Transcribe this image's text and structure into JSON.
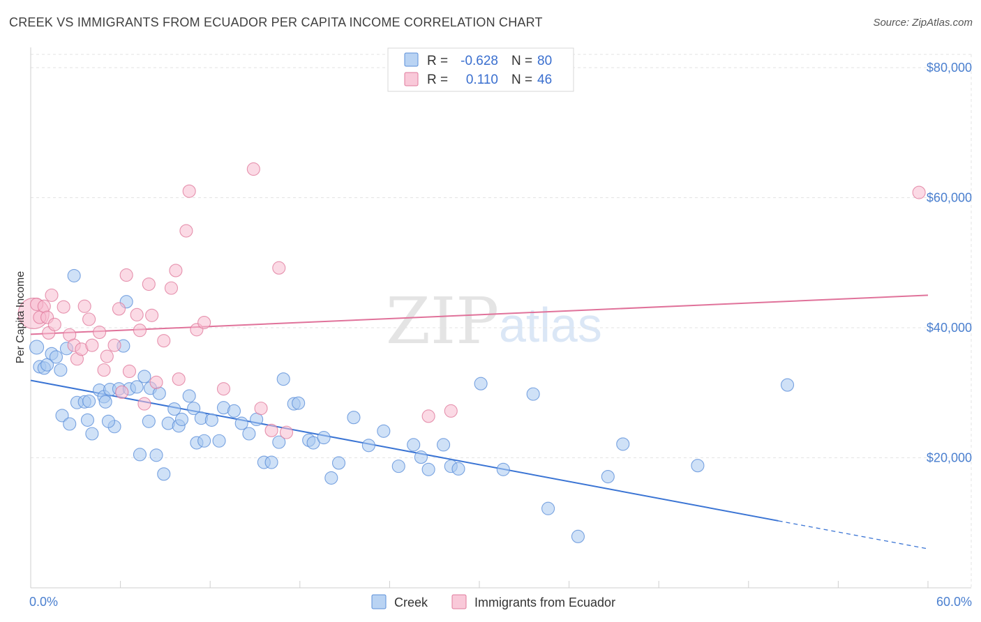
{
  "header": {
    "title": "CREEK VS IMMIGRANTS FROM ECUADOR PER CAPITA INCOME CORRELATION CHART",
    "source": "Source: ZipAtlas.com"
  },
  "watermark": {
    "zip": "ZIP",
    "atlas": "atlas"
  },
  "legend": {
    "r_label": "R =",
    "n_label": "N =",
    "items": [
      {
        "r": "-0.628",
        "n": "80",
        "fill": "#a8c8f0",
        "stroke": "#5b8fd9"
      },
      {
        "r": "0.110",
        "n": "46",
        "fill": "#f7bcd0",
        "stroke": "#e07a9c"
      }
    ]
  },
  "bottom_legend": [
    {
      "label": "Creek",
      "fill": "#a8c8f0",
      "stroke": "#5b8fd9"
    },
    {
      "label": "Immigrants from Ecuador",
      "fill": "#f7bcd0",
      "stroke": "#e07a9c"
    }
  ],
  "chart_data": {
    "type": "scatter",
    "ylabel": "Per Capita Income",
    "xlim": [
      0,
      60
    ],
    "ylim": [
      0,
      82000
    ],
    "y_ticks": [
      {
        "value": 20000,
        "label": "$20,000"
      },
      {
        "value": 40000,
        "label": "$40,000"
      },
      {
        "value": 60000,
        "label": "$60,000"
      },
      {
        "value": 80000,
        "label": "$80,000"
      }
    ],
    "x_tick_labels": [
      {
        "value": 0,
        "label": "0.0%"
      },
      {
        "value": 60,
        "label": "60.0%"
      }
    ],
    "x_minor_ticks": [
      0,
      6,
      12,
      18,
      24,
      30,
      36,
      42,
      48,
      54,
      60
    ],
    "grid": true,
    "series": [
      {
        "name": "Creek",
        "color": "#5b8fd9",
        "fill": "#a8c8f0",
        "trend": {
          "x0": 0,
          "y0": 31900,
          "x1": 50,
          "y1": 10300,
          "dash_to_x": 60,
          "dash_to_y": 6000,
          "color": "#3a74d4"
        },
        "points": [
          [
            0.4,
            37000
          ],
          [
            0.6,
            34000
          ],
          [
            0.9,
            33800
          ],
          [
            1.1,
            34300
          ],
          [
            1.4,
            36000
          ],
          [
            1.7,
            35500
          ],
          [
            2.0,
            33500
          ],
          [
            2.4,
            36800
          ],
          [
            2.1,
            26500
          ],
          [
            2.6,
            25200
          ],
          [
            2.9,
            48000
          ],
          [
            3.1,
            28500
          ],
          [
            3.6,
            28600
          ],
          [
            3.9,
            28700
          ],
          [
            3.8,
            25800
          ],
          [
            4.1,
            23700
          ],
          [
            4.6,
            30400
          ],
          [
            4.9,
            29400
          ],
          [
            5.0,
            28600
          ],
          [
            5.3,
            30500
          ],
          [
            5.6,
            24800
          ],
          [
            5.9,
            30600
          ],
          [
            5.2,
            25600
          ],
          [
            6.4,
            44000
          ],
          [
            6.2,
            37200
          ],
          [
            6.6,
            30600
          ],
          [
            7.1,
            30900
          ],
          [
            7.3,
            20500
          ],
          [
            7.6,
            32500
          ],
          [
            8.0,
            30700
          ],
          [
            7.9,
            25600
          ],
          [
            8.6,
            29900
          ],
          [
            8.4,
            20400
          ],
          [
            8.9,
            17500
          ],
          [
            9.2,
            25300
          ],
          [
            9.6,
            27500
          ],
          [
            9.9,
            24900
          ],
          [
            10.1,
            25900
          ],
          [
            10.6,
            29500
          ],
          [
            10.9,
            27600
          ],
          [
            11.4,
            26100
          ],
          [
            11.1,
            22300
          ],
          [
            11.6,
            22600
          ],
          [
            12.1,
            25800
          ],
          [
            12.6,
            22600
          ],
          [
            12.9,
            27700
          ],
          [
            13.6,
            27200
          ],
          [
            14.1,
            25300
          ],
          [
            14.6,
            23700
          ],
          [
            15.1,
            25900
          ],
          [
            15.6,
            19300
          ],
          [
            16.1,
            19300
          ],
          [
            16.6,
            22400
          ],
          [
            16.9,
            32100
          ],
          [
            17.6,
            28300
          ],
          [
            17.9,
            28400
          ],
          [
            18.6,
            22700
          ],
          [
            18.9,
            22300
          ],
          [
            19.6,
            23100
          ],
          [
            20.1,
            16900
          ],
          [
            20.6,
            19200
          ],
          [
            21.6,
            26200
          ],
          [
            22.6,
            21900
          ],
          [
            23.6,
            24100
          ],
          [
            24.6,
            18700
          ],
          [
            25.6,
            22000
          ],
          [
            26.1,
            20100
          ],
          [
            26.6,
            18200
          ],
          [
            27.6,
            22000
          ],
          [
            28.1,
            18700
          ],
          [
            28.6,
            18300
          ],
          [
            30.1,
            31400
          ],
          [
            31.6,
            18200
          ],
          [
            33.6,
            29800
          ],
          [
            34.6,
            12200
          ],
          [
            36.6,
            7900
          ],
          [
            38.6,
            17100
          ],
          [
            39.6,
            22100
          ],
          [
            44.6,
            18800
          ],
          [
            50.6,
            31200
          ]
        ]
      },
      {
        "name": "Immigrants from Ecuador",
        "color": "#e07a9c",
        "fill": "#f7bcd0",
        "trend": {
          "x0": 0,
          "y0": 39000,
          "x1": 60,
          "y1": 45000,
          "color": "#e0729a"
        },
        "points": [
          [
            0.2,
            42200
          ],
          [
            0.4,
            43600
          ],
          [
            0.6,
            41600
          ],
          [
            0.9,
            43300
          ],
          [
            1.1,
            41600
          ],
          [
            1.2,
            39200
          ],
          [
            1.4,
            45000
          ],
          [
            1.6,
            40500
          ],
          [
            2.2,
            43200
          ],
          [
            2.6,
            38900
          ],
          [
            2.9,
            37300
          ],
          [
            3.1,
            35200
          ],
          [
            3.4,
            36700
          ],
          [
            3.6,
            43300
          ],
          [
            3.9,
            41300
          ],
          [
            4.1,
            37300
          ],
          [
            4.6,
            39300
          ],
          [
            4.9,
            33500
          ],
          [
            5.1,
            35600
          ],
          [
            5.6,
            37300
          ],
          [
            5.9,
            42900
          ],
          [
            6.1,
            30100
          ],
          [
            6.4,
            48100
          ],
          [
            6.6,
            33300
          ],
          [
            7.1,
            42000
          ],
          [
            7.3,
            39600
          ],
          [
            7.6,
            28300
          ],
          [
            7.9,
            46700
          ],
          [
            8.1,
            41900
          ],
          [
            8.4,
            31600
          ],
          [
            8.9,
            38000
          ],
          [
            9.4,
            46100
          ],
          [
            9.7,
            48800
          ],
          [
            9.9,
            32100
          ],
          [
            10.4,
            54900
          ],
          [
            10.6,
            61000
          ],
          [
            11.1,
            39700
          ],
          [
            11.6,
            40800
          ],
          [
            12.9,
            30600
          ],
          [
            14.9,
            64400
          ],
          [
            15.4,
            27600
          ],
          [
            16.1,
            24200
          ],
          [
            16.6,
            49200
          ],
          [
            17.1,
            23900
          ],
          [
            26.6,
            26400
          ],
          [
            28.1,
            27200
          ]
        ]
      }
    ],
    "extra_points_note_free": [
      [
        59.4,
        60800
      ]
    ]
  }
}
